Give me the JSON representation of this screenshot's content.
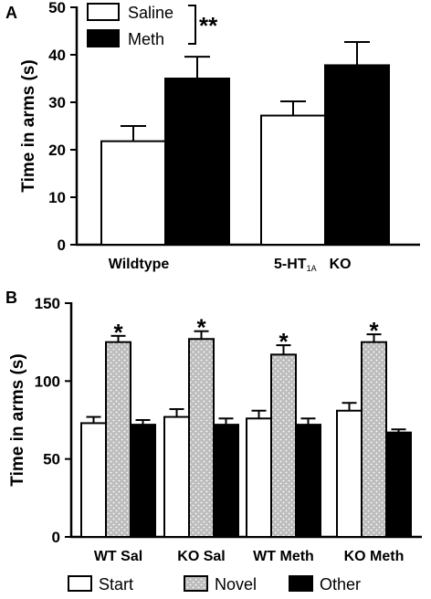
{
  "chart_data": [
    {
      "panel": "A",
      "type": "bar",
      "ylabel": "Time in arms (s)",
      "ylim": [
        0,
        50
      ],
      "yticks": [
        "0",
        "10",
        "20",
        "30",
        "40",
        "50"
      ],
      "categories": [
        {
          "label": "Wildtype"
        },
        {
          "label": "5-HT",
          "sub": "1A",
          "suffix": "KO"
        }
      ],
      "series": [
        {
          "name": "Saline",
          "fill": "#ffffff",
          "values": [
            21.8,
            27.2
          ],
          "errors": [
            3.2,
            3.0
          ]
        },
        {
          "name": "Meth",
          "fill": "#000000",
          "values": [
            35.0,
            37.8
          ],
          "errors": [
            4.6,
            4.9
          ]
        }
      ],
      "legend_position": "top-left",
      "annotation": "**"
    },
    {
      "panel": "B",
      "type": "bar",
      "ylabel": "Time in arms (s)",
      "ylim": [
        0,
        150
      ],
      "yticks": [
        "0",
        "50",
        "100",
        "150"
      ],
      "categories": [
        "WT Sal",
        "KO Sal",
        "WT Meth",
        "KO Meth"
      ],
      "series": [
        {
          "name": "Start",
          "fill": "#ffffff",
          "values": [
            73,
            77,
            76,
            81
          ],
          "errors": [
            4,
            5,
            5,
            5
          ]
        },
        {
          "name": "Novel",
          "fill": "#bdbdbd",
          "pattern": "dots",
          "values": [
            125,
            127,
            117,
            125
          ],
          "errors": [
            4,
            5,
            6,
            5
          ]
        },
        {
          "name": "Other",
          "fill": "#000000",
          "values": [
            72,
            72,
            72,
            67
          ],
          "errors": [
            3,
            4,
            4,
            2
          ]
        }
      ],
      "legend_position": "bottom",
      "significance_marker": "*"
    }
  ]
}
